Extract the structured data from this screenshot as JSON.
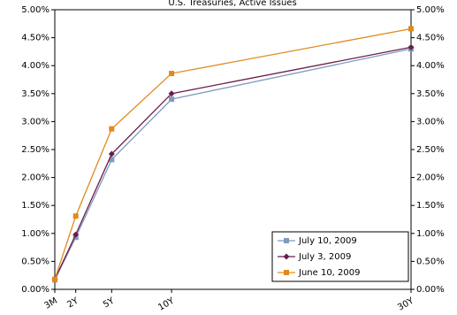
{
  "chart_data": {
    "type": "line",
    "title": "U.S. Treasuries, Active Issues",
    "x": [
      0.25,
      2,
      5,
      10,
      30
    ],
    "xlim": [
      0.25,
      30
    ],
    "xticks": [
      {
        "value": 0.25,
        "label": "3M"
      },
      {
        "value": 2,
        "label": "2Y"
      },
      {
        "value": 5,
        "label": "5Y"
      },
      {
        "value": 10,
        "label": "10Y"
      },
      {
        "value": 30,
        "label": "30Y"
      }
    ],
    "ylim": [
      0,
      5
    ],
    "yticks": [
      {
        "value": 0,
        "label": "0.00%"
      },
      {
        "value": 0.5,
        "label": "0.50%"
      },
      {
        "value": 1,
        "label": "1.00%"
      },
      {
        "value": 1.5,
        "label": "1.50%"
      },
      {
        "value": 2,
        "label": "2.00%"
      },
      {
        "value": 2.5,
        "label": "2.50%"
      },
      {
        "value": 3,
        "label": "3.00%"
      },
      {
        "value": 3.5,
        "label": "3.50%"
      },
      {
        "value": 4,
        "label": "4.00%"
      },
      {
        "value": 4.5,
        "label": "4.50%"
      },
      {
        "value": 5,
        "label": "5.00%"
      }
    ],
    "legend": "bottom-right",
    "series": [
      {
        "name": "July 10, 2009",
        "color": "#7f9bbd",
        "marker": "square",
        "values": [
          0.17,
          0.93,
          2.32,
          3.4,
          4.3
        ]
      },
      {
        "name": "July 3, 2009",
        "color": "#6b1d4b",
        "marker": "diamond",
        "values": [
          0.18,
          0.98,
          2.42,
          3.5,
          4.33
        ]
      },
      {
        "name": "June 10, 2009",
        "color": "#e08a1c",
        "marker": "square",
        "values": [
          0.18,
          1.31,
          2.87,
          3.86,
          4.66
        ]
      }
    ]
  }
}
